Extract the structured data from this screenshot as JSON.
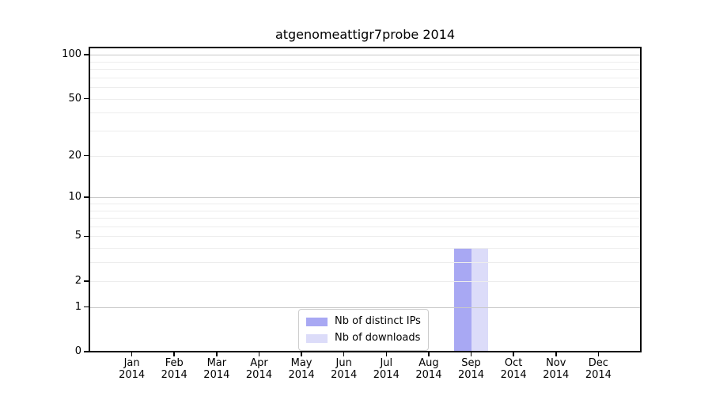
{
  "chart_data": {
    "type": "bar",
    "title": "atgenomeattigr7probe 2014",
    "xlabel": "",
    "ylabel": "",
    "x_tick_labels": [
      [
        "Jan",
        "2014"
      ],
      [
        "Feb",
        "2014"
      ],
      [
        "Mar",
        "2014"
      ],
      [
        "Apr",
        "2014"
      ],
      [
        "May",
        "2014"
      ],
      [
        "Jun",
        "2014"
      ],
      [
        "Jul",
        "2014"
      ],
      [
        "Aug",
        "2014"
      ],
      [
        "Sep",
        "2014"
      ],
      [
        "Oct",
        "2014"
      ],
      [
        "Nov",
        "2014"
      ],
      [
        "Dec",
        "2014"
      ]
    ],
    "series": [
      {
        "name": "Nb of distinct IPs",
        "color": "#a8a8f3",
        "values": [
          0,
          0,
          0,
          0,
          0,
          0,
          0,
          0,
          4,
          0,
          0,
          0
        ]
      },
      {
        "name": "Nb of downloads",
        "color": "#dcdcf9",
        "values": [
          0,
          0,
          0,
          0,
          0,
          0,
          0,
          0,
          4,
          0,
          0,
          0
        ]
      }
    ],
    "y_axis": {
      "scale": "log1p",
      "ticks": [
        0,
        1,
        2,
        5,
        10,
        20,
        50,
        100
      ],
      "minor_gridlines": [
        2,
        3,
        4,
        5,
        6,
        7,
        8,
        9,
        20,
        30,
        40,
        50,
        60,
        70,
        80,
        90
      ],
      "major_gridlines": [
        1,
        10,
        100
      ],
      "ylim": [
        0,
        112
      ]
    },
    "legend": {
      "position": "lower-center-inside",
      "labels": [
        "Nb of distinct IPs",
        "Nb of downloads"
      ]
    },
    "grid": true,
    "colors": {
      "axis": "#000000",
      "minor_grid": "#ededed",
      "major_grid": "#c8c8c8",
      "legend_border": "#cccccc",
      "background": "#ffffff"
    }
  }
}
